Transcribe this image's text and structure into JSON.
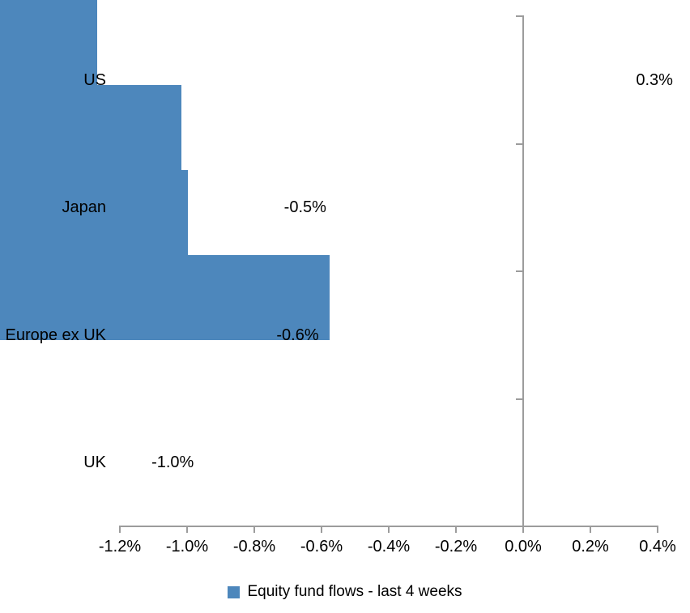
{
  "chart_data": {
    "type": "bar",
    "orientation": "horizontal",
    "title": "",
    "xlabel": "",
    "ylabel": "",
    "grid": false,
    "legend_position": "bottom",
    "series_name": "Equity fund flows - last 4 weeks",
    "categories": [
      "US",
      "Japan",
      "Europe ex UK",
      "UK"
    ],
    "values": [
      0.29,
      -0.54,
      -0.56,
      -0.98
    ],
    "value_labels": [
      "0.3%",
      "-0.5%",
      "-0.6%",
      "-1.0%"
    ],
    "xlim": [
      -1.2,
      0.4
    ],
    "x_ticks": [
      -1.2,
      -1.0,
      -0.8,
      -0.6,
      -0.4,
      -0.2,
      0.0,
      0.2,
      0.4
    ],
    "x_tick_labels": [
      "-1.2%",
      "-1.0%",
      "-0.8%",
      "-0.6%",
      "-0.4%",
      "-0.2%",
      "0.0%",
      "0.2%",
      "0.4%"
    ],
    "colors": {
      "bar": "#4D87BC",
      "axis": "#9C9C9C",
      "text": "#000000",
      "background": "#FFFFFF"
    }
  }
}
